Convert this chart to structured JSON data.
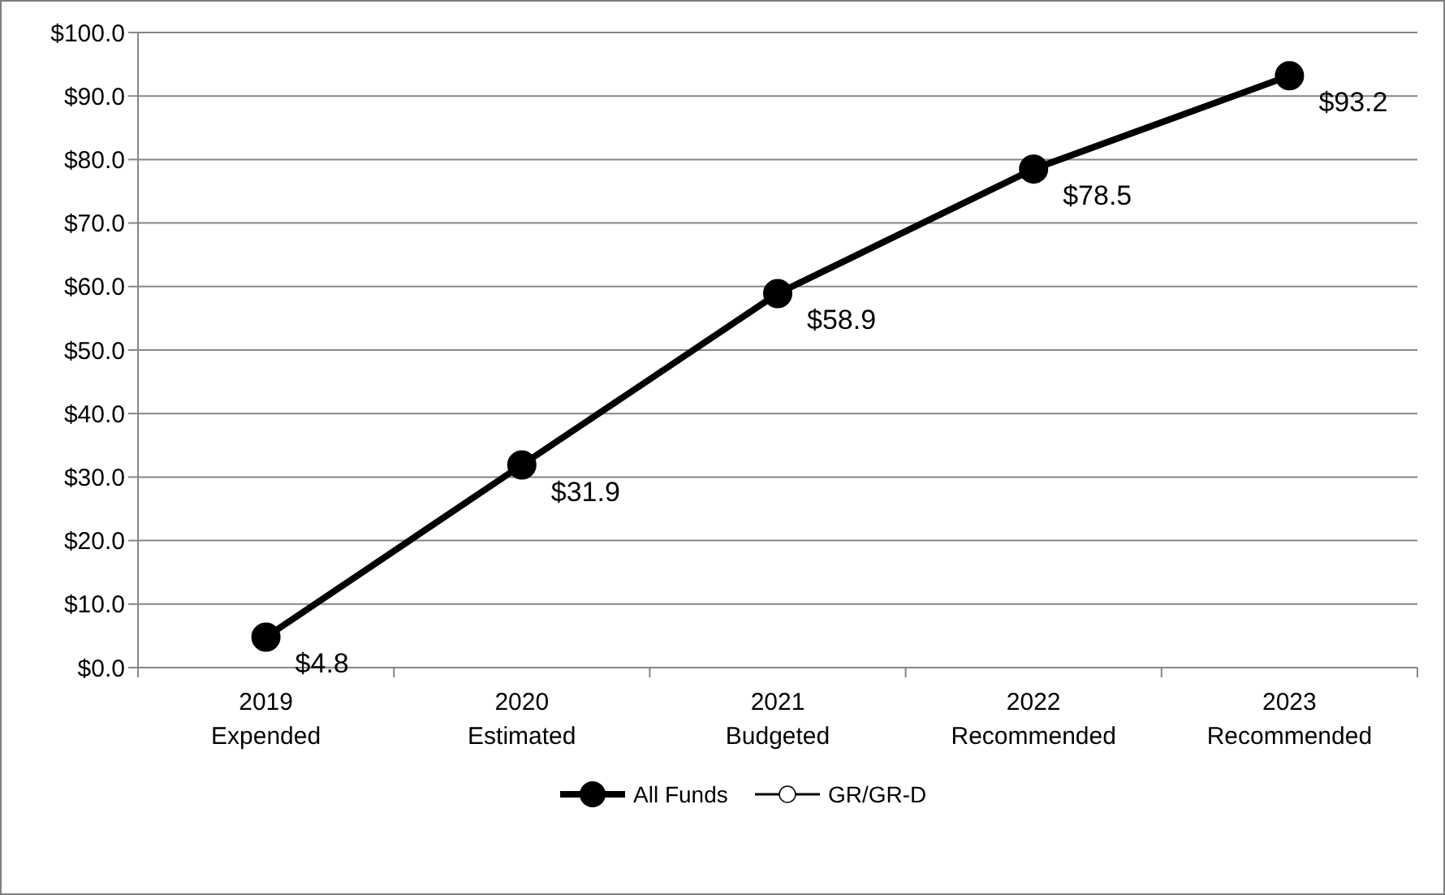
{
  "chart_data": {
    "type": "line",
    "categories": [
      "2019\nExpended",
      "2020\nEstimated",
      "2021\nBudgeted",
      "2022\nRecommended",
      "2023\nRecommended"
    ],
    "series": [
      {
        "name": "All Funds",
        "color": "#000000",
        "values": [
          4.8,
          31.9,
          58.9,
          78.5,
          93.2
        ],
        "value_labels": [
          "$4.8",
          "$31.9",
          "$58.9",
          "$78.5",
          "$93.2"
        ]
      },
      {
        "name": "GR/GR-D",
        "color": "#000000",
        "values": [
          null,
          null,
          null,
          null,
          null
        ]
      }
    ],
    "ylim": [
      0,
      100
    ],
    "yticks": [
      {
        "value": 0,
        "label": "$0.0"
      },
      {
        "value": 10,
        "label": "$10.0"
      },
      {
        "value": 20,
        "label": "$20.0"
      },
      {
        "value": 30,
        "label": "$30.0"
      },
      {
        "value": 40,
        "label": "$40.0"
      },
      {
        "value": 50,
        "label": "$50.0"
      },
      {
        "value": 60,
        "label": "$60.0"
      },
      {
        "value": 70,
        "label": "$70.0"
      },
      {
        "value": 80,
        "label": "$80.0"
      },
      {
        "value": 90,
        "label": "$90.0"
      },
      {
        "value": 100,
        "label": "$100.0"
      }
    ],
    "grid": "y",
    "legend": "bottom",
    "marker": "circle",
    "line_style": "solid"
  }
}
